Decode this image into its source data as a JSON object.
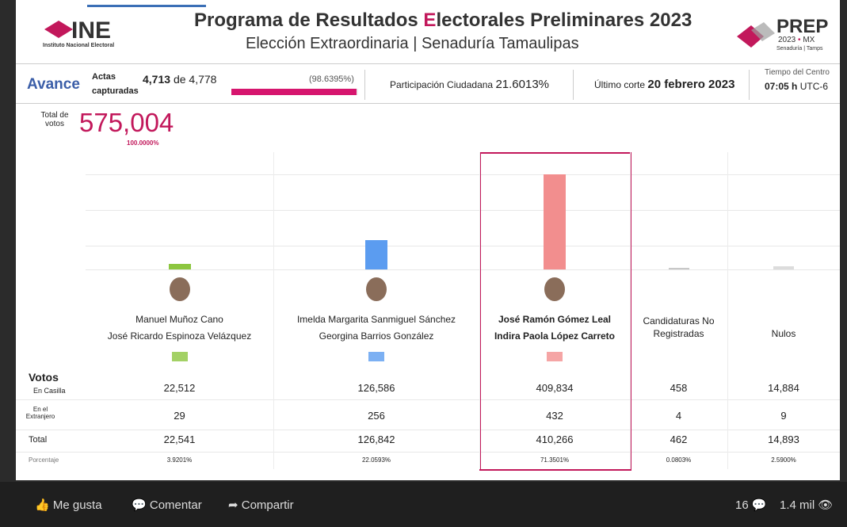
{
  "header": {
    "logo_text": "INE",
    "logo_sub": "Instituto Nacional Electoral",
    "title_parts": [
      "Programa de Resultados ",
      "E",
      "lectorales Preliminares 2023"
    ],
    "subtitle": "Elección Extraordinaria | Senaduría Tamaulipas",
    "prep": "PREP",
    "prep_year": "2023",
    "prep_dot": "•",
    "prep_mx": "MX",
    "prep_sub": "Senaduría | Tamps"
  },
  "avance": {
    "label": "Avance",
    "actas_label": "Actas capturadas",
    "actas": "4,713",
    "de": "de",
    "actas_total": "4,778",
    "pct": {
      "value": 98.6395,
      "label": "(98.6395%)"
    },
    "participacion_label": "Participación Ciudadana",
    "participacion": "21.6013%",
    "corte_label": "Último corte",
    "corte": "20 febrero 2023",
    "tiempo_label": "Tiempo del Centro",
    "hora": "07:05 h",
    "tz": "UTC-6"
  },
  "total": {
    "label": "Total de votos",
    "value": "575,004",
    "pct": "100.0000%"
  },
  "row_labels": {
    "votos": "Votos",
    "casilla": "En Casilla",
    "extranjero": "En el Extranjero",
    "total": "Total",
    "porcentaje": "Porcentaje"
  },
  "columns": [
    {
      "names": [
        "Manuel Muñoz Cano",
        "José Ricardo Espinoza Velázquez"
      ],
      "color": "#8cc63f",
      "casilla": "22,512",
      "extranjero": "29",
      "total": {
        "value": 22541,
        "label": "22,541"
      },
      "porcentaje": "3.9201%"
    },
    {
      "names": [
        "Imelda Margarita Sanmiguel Sánchez",
        "Georgina Barrios González"
      ],
      "color": "#5b9cf0",
      "casilla": "126,586",
      "extranjero": "256",
      "total": {
        "value": 126842,
        "label": "126,842"
      },
      "porcentaje": "22.0593%"
    },
    {
      "names": [
        "José Ramón Gómez Leal",
        "Indira Paola López Carreto"
      ],
      "color": "#f28e8e",
      "casilla": "409,834",
      "extranjero": "432",
      "total": {
        "value": 410266,
        "label": "410,266"
      },
      "porcentaje": "71.3501%"
    },
    {
      "names": [
        "Candidaturas No Registradas"
      ],
      "color": "#c8c8c8",
      "casilla": "458",
      "extranjero": "4",
      "total": {
        "value": 462,
        "label": "462"
      },
      "porcentaje": "0.0803%"
    },
    {
      "names": [
        "Nulos"
      ],
      "color": "#dcdcdc",
      "casilla": "14,884",
      "extranjero": "9",
      "total": {
        "value": 14893,
        "label": "14,893"
      },
      "porcentaje": "2.5900%"
    }
  ],
  "footer": {
    "like": "Me gusta",
    "comment": "Comentar",
    "share": "Compartir",
    "comments": "16",
    "views": "1.4 mil"
  }
}
